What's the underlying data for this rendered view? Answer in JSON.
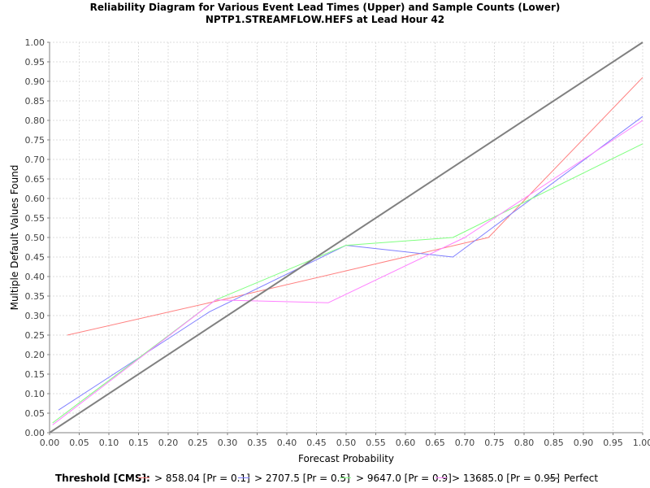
{
  "title_line1": "Reliability Diagram for Various Event Lead Times (Upper) and Sample Counts (Lower)",
  "title_line2": "NPTP1.STREAMFLOW.HEFS at Lead Hour 42",
  "legend_header": "Threshold [CMS]:",
  "chart_data": {
    "type": "line",
    "xlabel": "Forecast Probability",
    "ylabel": "Multiple Default Values Found",
    "xlim": [
      0,
      1
    ],
    "ylim": [
      0,
      1
    ],
    "xticks": [
      "0.00",
      "0.05",
      "0.10",
      "0.15",
      "0.20",
      "0.25",
      "0.30",
      "0.35",
      "0.40",
      "0.45",
      "0.50",
      "0.55",
      "0.60",
      "0.65",
      "0.70",
      "0.75",
      "0.80",
      "0.85",
      "0.90",
      "0.95",
      "1.00"
    ],
    "yticks": [
      "0.00",
      "0.05",
      "0.10",
      "0.15",
      "0.20",
      "0.25",
      "0.30",
      "0.35",
      "0.40",
      "0.45",
      "0.50",
      "0.55",
      "0.60",
      "0.65",
      "0.70",
      "0.75",
      "0.80",
      "0.85",
      "0.90",
      "0.95",
      "1.00"
    ],
    "grid": true,
    "legend_position": "bottom",
    "series": [
      {
        "name": "> 858.04 [Pr = 0.1]",
        "color": "#ff8080",
        "points": [
          [
            0.03,
            0.25
          ],
          [
            0.29,
            0.34
          ],
          [
            0.74,
            0.5
          ],
          [
            1.0,
            0.91
          ]
        ]
      },
      {
        "name": "> 2707.5 [Pr = 0.5]",
        "color": "#8080ff",
        "points": [
          [
            0.015,
            0.058
          ],
          [
            0.27,
            0.31
          ],
          [
            0.5,
            0.48
          ],
          [
            0.68,
            0.45
          ],
          [
            1.0,
            0.81
          ]
        ]
      },
      {
        "name": "> 9647.0 [Pr = 0.9]",
        "color": "#80ff80",
        "points": [
          [
            0.005,
            0.025
          ],
          [
            0.28,
            0.34
          ],
          [
            0.5,
            0.48
          ],
          [
            0.68,
            0.5
          ],
          [
            1.0,
            0.74
          ]
        ]
      },
      {
        "name": "> 13685.0 [Pr = 0.95]",
        "color": "#ff80ff",
        "points": [
          [
            0.005,
            0.02
          ],
          [
            0.28,
            0.34
          ],
          [
            0.47,
            0.333
          ],
          [
            0.7,
            0.5
          ],
          [
            1.0,
            0.8
          ]
        ]
      },
      {
        "name": "Perfect",
        "color": "#808080",
        "points": [
          [
            0.0,
            0.0
          ],
          [
            1.0,
            1.0
          ]
        ]
      }
    ]
  }
}
